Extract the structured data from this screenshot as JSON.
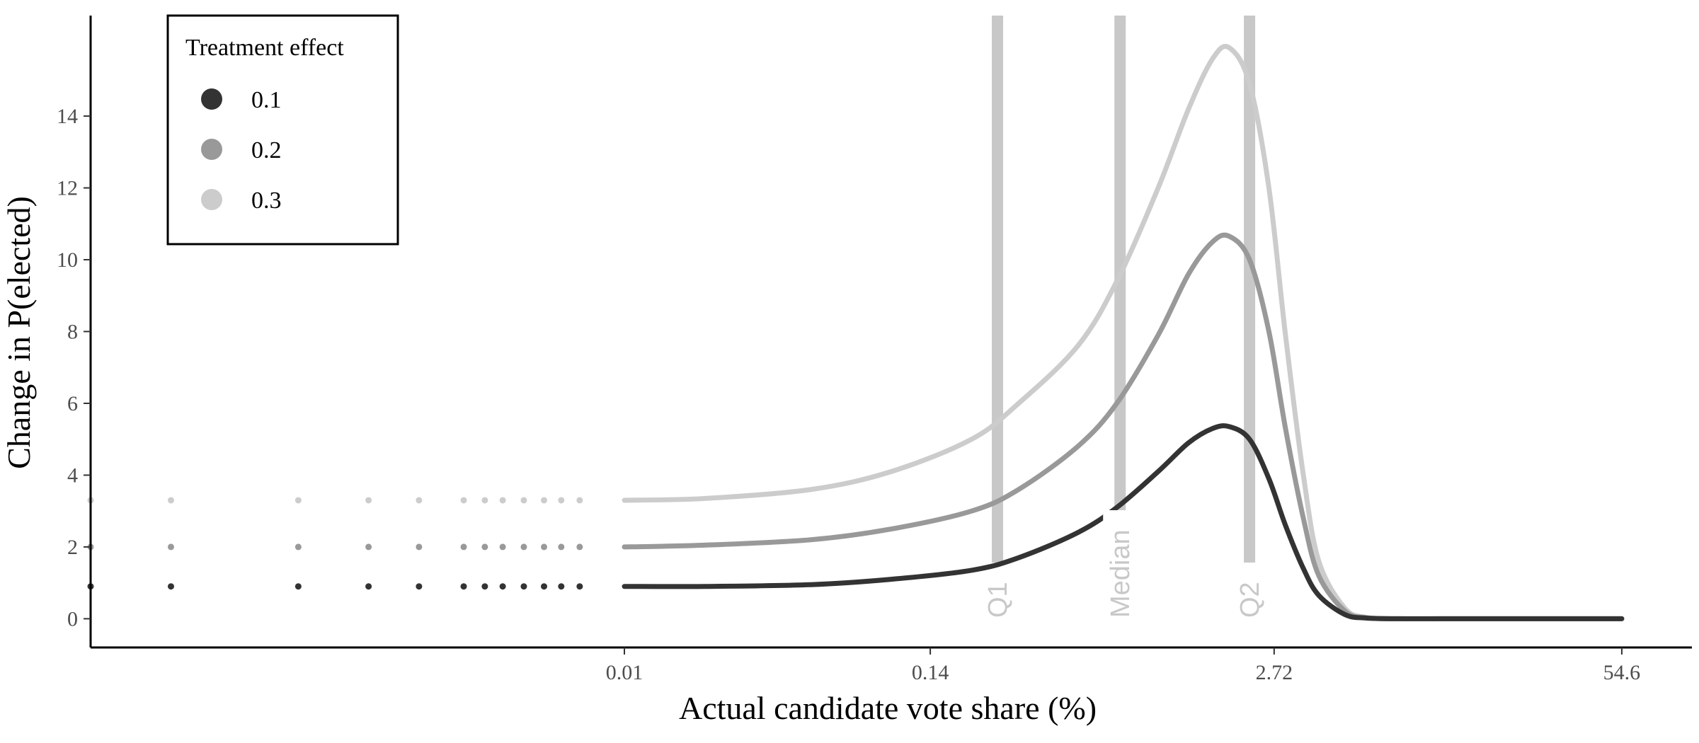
{
  "chart_data": {
    "type": "line",
    "xlabel": "Actual candidate vote share (%)",
    "ylabel": "Change in P(elected)",
    "x_scale": "log",
    "x_ticks": [
      0.01,
      0.14,
      2.72,
      54.6
    ],
    "x_tick_labels": [
      "0.01",
      "0.14",
      "2.72",
      "54.6"
    ],
    "xlim": [
      0.0001,
      100
    ],
    "y_ticks": [
      0,
      2,
      4,
      6,
      8,
      10,
      12,
      14
    ],
    "y_tick_labels": [
      "0",
      "2",
      "4",
      "6",
      "8",
      "10",
      "12",
      "14"
    ],
    "ylim": [
      -0.8,
      16.8
    ],
    "grid": false,
    "legend": {
      "title": "Treatment effect",
      "position": "top-left"
    },
    "reference_lines": [
      {
        "label": "Q1",
        "x": 0.25
      },
      {
        "label": "Median",
        "x": 0.72
      },
      {
        "label": "Q2",
        "x": 2.2
      }
    ],
    "series": [
      {
        "name": "0.1",
        "color": "#333333",
        "x": [
          0.01,
          0.02,
          0.05,
          0.1,
          0.2,
          0.3,
          0.5,
          0.7,
          1.0,
          1.3,
          1.6,
          1.85,
          2.2,
          2.6,
          3.0,
          3.5,
          4.0,
          5.0,
          6.0,
          8.0,
          12.0,
          20.0,
          35.0,
          54.6
        ],
        "y": [
          0.9,
          0.9,
          0.95,
          1.1,
          1.35,
          1.7,
          2.4,
          3.1,
          4.1,
          4.9,
          5.3,
          5.35,
          5.0,
          3.9,
          2.6,
          1.4,
          0.65,
          0.12,
          0.02,
          0.0,
          0.0,
          0.0,
          0.0,
          0.0
        ]
      },
      {
        "name": "0.2",
        "color": "#999999",
        "x": [
          0.01,
          0.02,
          0.05,
          0.1,
          0.2,
          0.3,
          0.5,
          0.7,
          1.0,
          1.3,
          1.6,
          1.85,
          2.2,
          2.6,
          3.0,
          3.5,
          4.0,
          5.0,
          6.0,
          8.0,
          12.0,
          20.0,
          35.0,
          54.6
        ],
        "y": [
          2.0,
          2.05,
          2.2,
          2.5,
          3.0,
          3.6,
          4.8,
          6.0,
          7.9,
          9.6,
          10.5,
          10.65,
          10.0,
          8.0,
          5.3,
          2.8,
          1.2,
          0.22,
          0.03,
          0.0,
          0.0,
          0.0,
          0.0,
          0.0
        ]
      },
      {
        "name": "0.3",
        "color": "#cccccc",
        "x": [
          0.01,
          0.02,
          0.05,
          0.1,
          0.2,
          0.3,
          0.5,
          0.7,
          1.0,
          1.3,
          1.6,
          1.85,
          2.2,
          2.6,
          3.0,
          3.5,
          4.0,
          5.0,
          6.0,
          8.0,
          12.0,
          20.0,
          35.0,
          54.6
        ],
        "y": [
          3.3,
          3.35,
          3.6,
          4.1,
          5.0,
          6.0,
          7.6,
          9.4,
          12.0,
          14.2,
          15.6,
          15.9,
          14.9,
          12.0,
          7.9,
          4.0,
          1.6,
          0.3,
          0.04,
          0.0,
          0.0,
          0.0,
          0.0,
          0.0
        ]
      }
    ],
    "points": [
      {
        "series": "0.1",
        "x": [
          0.0001,
          0.0002,
          0.0006,
          0.0011,
          0.0017,
          0.0025,
          0.003,
          0.0035,
          0.0042,
          0.005,
          0.0058,
          0.0068
        ],
        "y": 0.9
      },
      {
        "series": "0.2",
        "x": [
          0.0001,
          0.0002,
          0.0006,
          0.0011,
          0.0017,
          0.0025,
          0.003,
          0.0035,
          0.0042,
          0.005,
          0.0058,
          0.0068
        ],
        "y": 2.0
      },
      {
        "series": "0.3",
        "x": [
          0.0001,
          0.0002,
          0.0006,
          0.0011,
          0.0017,
          0.0025,
          0.003,
          0.0035,
          0.0042,
          0.005,
          0.0058,
          0.0068
        ],
        "y": 3.3
      }
    ]
  }
}
